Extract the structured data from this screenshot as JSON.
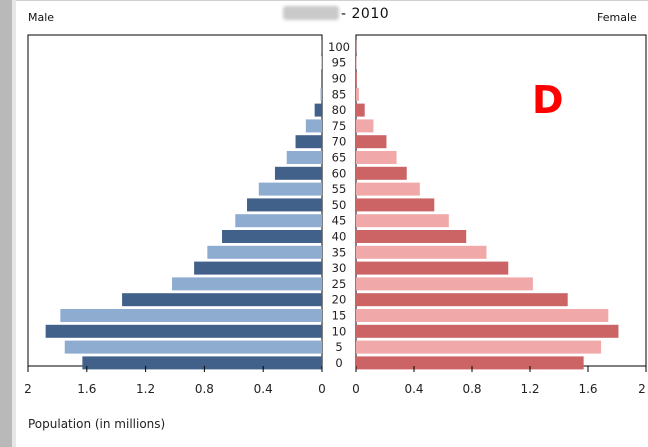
{
  "page": {
    "title_year": "- 2010",
    "left_label": "Male",
    "right_label": "Female",
    "letter": "D",
    "x_axis_title": "Population (in millions)"
  },
  "chart_data": {
    "type": "bar",
    "orientation": "horizontal",
    "layout": "population-pyramid",
    "age_groups": [
      "0",
      "5",
      "10",
      "15",
      "20",
      "25",
      "30",
      "35",
      "40",
      "45",
      "50",
      "55",
      "60",
      "65",
      "70",
      "75",
      "80",
      "85",
      "90",
      "95",
      "100"
    ],
    "xlim": [
      0,
      2
    ],
    "xticks": [
      2,
      1.6,
      1.2,
      0.8,
      0.4,
      0
    ],
    "xtick_labels_left": [
      "2",
      "1.6",
      "1.2",
      "0.8",
      "0.4",
      "0"
    ],
    "xtick_labels_right": [
      "0",
      "0.4",
      "0.8",
      "1.2",
      "1.6",
      "2"
    ],
    "series": [
      {
        "side": "left",
        "values": [
          1.63,
          1.75,
          1.88,
          1.78,
          1.36,
          1.02,
          0.87,
          0.78,
          0.68,
          0.59,
          0.51,
          0.43,
          0.32,
          0.24,
          0.18,
          0.11,
          0.05,
          0.01,
          0.005,
          0.003,
          0.002
        ]
      },
      {
        "side": "right",
        "values": [
          1.57,
          1.69,
          1.81,
          1.74,
          1.46,
          1.22,
          1.05,
          0.9,
          0.76,
          0.64,
          0.54,
          0.44,
          0.35,
          0.28,
          0.21,
          0.12,
          0.06,
          0.02,
          0.006,
          0.003,
          0.002
        ]
      }
    ],
    "colors": {
      "male_dark": "#41618a",
      "male_light": "#8eaccf",
      "female_dark": "#cc6466",
      "female_light": "#f0a8a8"
    }
  }
}
